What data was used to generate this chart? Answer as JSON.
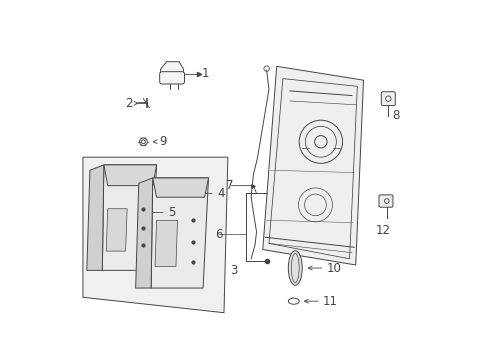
{
  "bg_color": "#ffffff",
  "fig_width": 4.9,
  "fig_height": 3.6,
  "dpi": 100,
  "line_color": "#444444",
  "fill_light": "#f5f5f5",
  "fill_mid": "#e8e8e8"
}
